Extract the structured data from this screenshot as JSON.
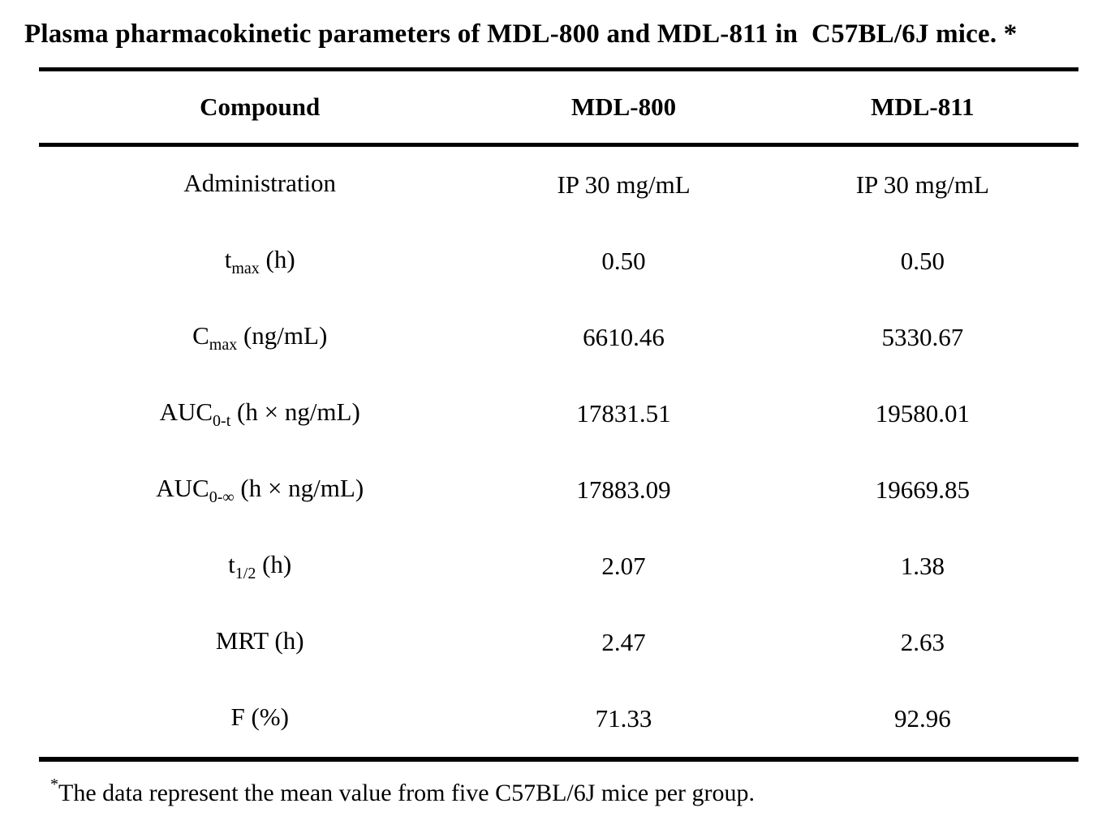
{
  "page": {
    "title": "Plasma pharmacokinetic parameters of MDL-800 and MDL-811 in  C57BL/6J mice. *"
  },
  "table": {
    "headers": {
      "compound": "Compound",
      "mdl800": "MDL-800",
      "mdl811": "MDL-811"
    },
    "rows": [
      {
        "param": {
          "pre": "Administration",
          "sub": "",
          "post": ""
        },
        "mdl800": "IP 30 mg/mL",
        "mdl811": "IP 30 mg/mL"
      },
      {
        "param": {
          "pre": "t",
          "sub": "max",
          "post": " (h)"
        },
        "mdl800": "0.50",
        "mdl811": "0.50"
      },
      {
        "param": {
          "pre": "C",
          "sub": "max",
          "post": " (ng/mL)"
        },
        "mdl800": "6610.46",
        "mdl811": "5330.67"
      },
      {
        "param": {
          "pre": "AUC",
          "sub": "0-t",
          "post": " (h × ng/mL)"
        },
        "mdl800": "17831.51",
        "mdl811": "19580.01"
      },
      {
        "param": {
          "pre": "AUC",
          "sub": "0-∞",
          "post": " (h × ng/mL)"
        },
        "mdl800": "17883.09",
        "mdl811": "19669.85"
      },
      {
        "param": {
          "pre": "t",
          "sub": "1/2",
          "post": " (h)"
        },
        "mdl800": "2.07",
        "mdl811": "1.38"
      },
      {
        "param": {
          "pre": "MRT (h)",
          "sub": "",
          "post": ""
        },
        "mdl800": "2.47",
        "mdl811": "2.63"
      },
      {
        "param": {
          "pre": "F (%)",
          "sub": "",
          "post": ""
        },
        "mdl800": "71.33",
        "mdl811": "92.96"
      }
    ]
  },
  "footnote": {
    "marker": "*",
    "text": "The data represent the mean value from five C57BL/6J mice per group."
  },
  "colors": {
    "text": "#000000",
    "background": "#ffffff",
    "rule": "#000000"
  }
}
